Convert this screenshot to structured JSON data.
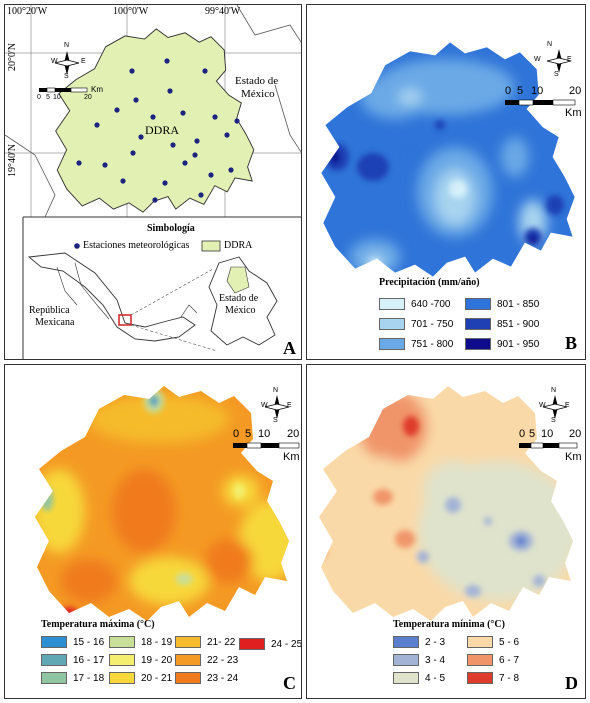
{
  "panel_a": {
    "label": "A",
    "coords_top": [
      "100°20'W",
      "100°0'W",
      "99°40'W"
    ],
    "coords_left": [
      "20°0'N",
      "19°40'N"
    ],
    "region_label": "DDRA",
    "state_label": [
      "Estado de",
      "México"
    ],
    "north_letters": {
      "n": "N",
      "s": "S",
      "e": "E",
      "w": "W"
    },
    "scale_ticks": [
      "0",
      "5",
      "10",
      "20"
    ],
    "scale_unit": "Km",
    "simbologia_title": "Simbología",
    "legend_stations": "Estaciones meteorológicas",
    "legend_ddra": "DDRA",
    "inset_country": [
      "República",
      "Mexicana"
    ],
    "inset_state": [
      "Estado de",
      "México"
    ],
    "colors": {
      "ddra_fill": "#e2f0b4",
      "station": "#1a237e",
      "inset_box": "#d32f2f"
    }
  },
  "panel_b": {
    "label": "B",
    "north_letters": {
      "n": "N",
      "s": "S",
      "e": "E",
      "w": "W"
    },
    "scale_ticks": [
      "0",
      "5",
      "10",
      "20"
    ],
    "scale_unit": "Km",
    "legend_title": "Precipitación (mm/año)",
    "classes": [
      {
        "label": "640 -700",
        "color": "#d6f0fa"
      },
      {
        "label": "701 - 750",
        "color": "#a8d4f0"
      },
      {
        "label": "751 - 800",
        "color": "#6aa9e6"
      },
      {
        "label": "801 - 850",
        "color": "#2f74d8"
      },
      {
        "label": "851 - 900",
        "color": "#1f3fb5"
      },
      {
        "label": "901 - 950",
        "color": "#0d0d8c"
      }
    ]
  },
  "panel_c": {
    "label": "C",
    "north_letters": {
      "n": "N",
      "s": "S",
      "e": "E",
      "w": "W"
    },
    "scale_ticks": [
      "0",
      "5",
      "10",
      "20"
    ],
    "scale_unit": "Km",
    "legend_title": "Temperatura máxima (°C)",
    "classes": [
      {
        "label": "15 - 16",
        "color": "#2b8fd1"
      },
      {
        "label": "16 - 17",
        "color": "#5fa8b4"
      },
      {
        "label": "17 - 18",
        "color": "#8fc5a0"
      },
      {
        "label": "18 - 19",
        "color": "#c8df9a"
      },
      {
        "label": "19 - 20",
        "color": "#f4ef6e"
      },
      {
        "label": "20 - 21",
        "color": "#f7d83a"
      },
      {
        "label": "21- 22",
        "color": "#f5bb2c"
      },
      {
        "label": "22 - 23",
        "color": "#f49a24"
      },
      {
        "label": "23 - 24",
        "color": "#f07a1e"
      },
      {
        "label": "24 - 25",
        "color": "#e02020"
      }
    ]
  },
  "panel_d": {
    "label": "D",
    "north_letters": {
      "n": "N",
      "s": "S",
      "e": "E",
      "w": "W"
    },
    "scale_ticks": [
      "0",
      "5",
      "10",
      "20"
    ],
    "scale_unit": "Km",
    "legend_title": "Temperatura mínima (°C)",
    "classes": [
      {
        "label": "2 - 3",
        "color": "#5b7fcf"
      },
      {
        "label": "3 - 4",
        "color": "#a3b3d6"
      },
      {
        "label": "4 - 5",
        "color": "#dfe3cc"
      },
      {
        "label": "5 - 6",
        "color": "#fad9a8"
      },
      {
        "label": "6 - 7",
        "color": "#f0956a"
      },
      {
        "label": "7 - 8",
        "color": "#de3b2b"
      }
    ]
  }
}
